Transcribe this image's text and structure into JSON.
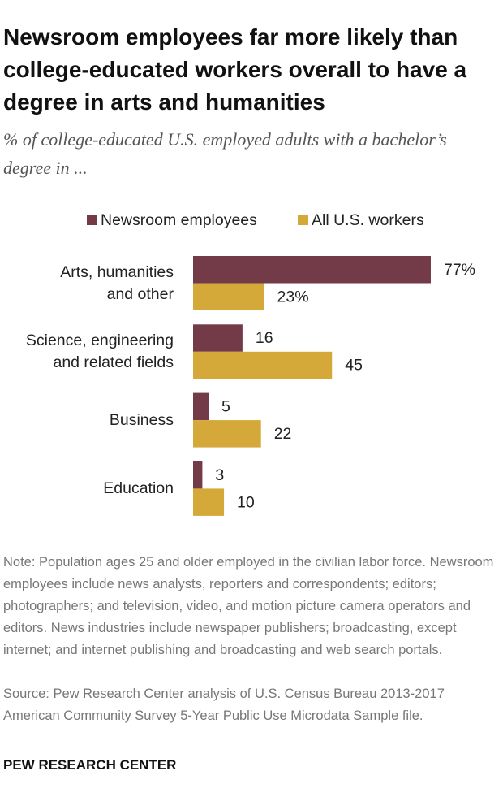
{
  "chart_data": {
    "type": "bar",
    "orientation": "horizontal",
    "title": "Newsroom employees far more likely than college-educated workers overall to have a degree in arts and humanities",
    "subtitle": "% of college-educated U.S. employed adults with a bachelor’s degree in ...",
    "categories": [
      "Arts, humanities\nand other",
      "Science, engineering\nand related fields",
      "Business",
      "Education"
    ],
    "series": [
      {
        "name": "Newsroom employees",
        "color": "#733b48",
        "values": [
          77,
          16,
          5,
          3
        ],
        "value_labels": [
          "77%",
          "16",
          "5",
          "3"
        ]
      },
      {
        "name": "All U.S. workers",
        "color": "#d4a93a",
        "values": [
          23,
          45,
          22,
          10
        ],
        "value_labels": [
          "23%",
          "45",
          "22",
          "10"
        ]
      }
    ],
    "note": "Note: Population ages 25 and older employed in the civilian labor force. Newsroom employees include news analysts, reporters and correspondents; editors; photographers; and television, video, and motion picture camera operators and editors. News industries include newspaper publishers; broadcasting, except internet; and internet publishing and broadcasting and web search portals.",
    "source": "Source: Pew Research Center analysis of U.S. Census Bureau 2013-2017 American Community Survey 5-Year Public Use Microdata Sample file.",
    "credit": "PEW RESEARCH CENTER"
  }
}
